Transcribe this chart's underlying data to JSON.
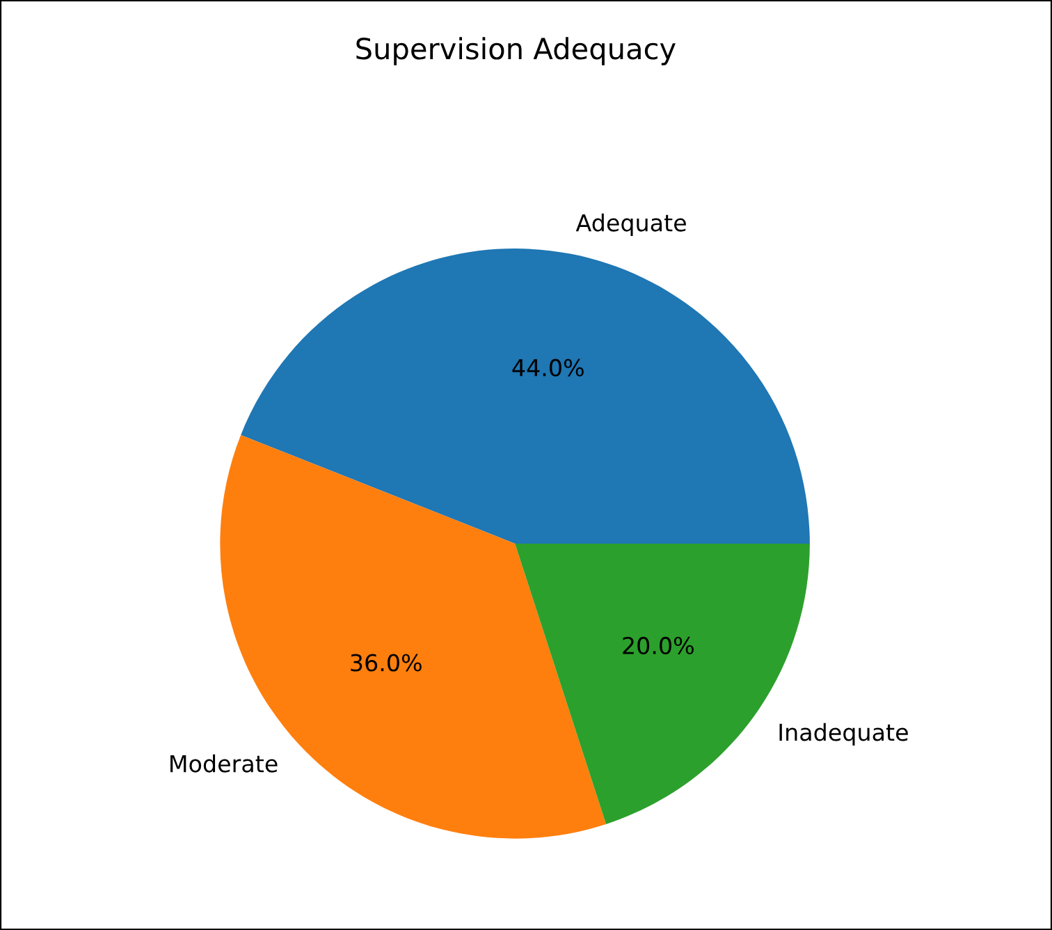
{
  "chart_data": {
    "type": "pie",
    "title": "Supervision Adequacy",
    "categories": [
      "Adequate",
      "Moderate",
      "Inadequate"
    ],
    "values": [
      44,
      36,
      20
    ],
    "colors": [
      "#1f77b4",
      "#ff7f0e",
      "#2ca02c"
    ],
    "value_labels": [
      "44.0%",
      "36.0%",
      "20.0%"
    ]
  }
}
